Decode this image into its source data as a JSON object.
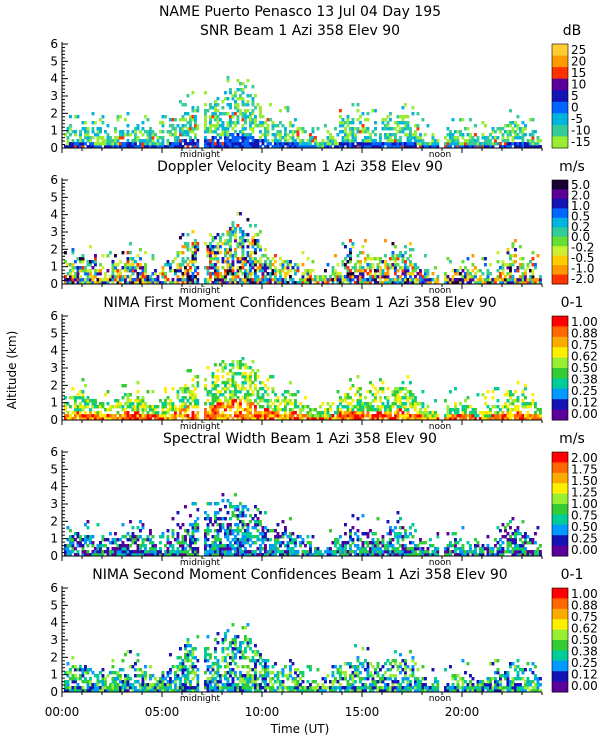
{
  "figure": {
    "title": "NAME Puerto Penasco  13 Jul 04 Day 195",
    "ylabel": "Altitude (km)",
    "xlabel": "Time (UT)",
    "xticks": [
      "00:00",
      "05:00",
      "10:00",
      "15:00",
      "20:00"
    ],
    "xtick_values": [
      0,
      5,
      10,
      15,
      20
    ],
    "xlim": [
      0,
      24
    ],
    "markers": [
      {
        "label": "midnight",
        "time": 6.9
      },
      {
        "label": "noon",
        "time": 18.9
      }
    ]
  },
  "chart_data": [
    {
      "type": "heatmap",
      "title": "SNR Beam 1 Azi 358 Elev 90",
      "unit": "dB",
      "ylim": [
        0,
        6
      ],
      "yticks": [
        "0",
        "1",
        "2",
        "3",
        "4",
        "5",
        "6"
      ],
      "colorbar_labels": [
        "25",
        "20",
        "15",
        "10",
        "5",
        "0",
        "-5",
        "-10",
        "-15"
      ],
      "colorbar_colors": [
        "#ffcc33",
        "#ff9900",
        "#ff3300",
        "#5a0099",
        "#1414b4",
        "#0066ff",
        "#00b4e0",
        "#33cc99",
        "#99ee33"
      ]
    },
    {
      "type": "heatmap",
      "title": "Doppler Velocity Beam 1 Azi 358 Elev 90",
      "unit": "m/s",
      "ylim": [
        0,
        6
      ],
      "yticks": [
        "0",
        "1",
        "2",
        "3",
        "4",
        "5",
        "6"
      ],
      "colorbar_labels": [
        "5.0",
        "2.0",
        "1.0",
        "0.5",
        "0.2",
        "0.0",
        "-0.2",
        "-0.5",
        "-1.0",
        "-2.0"
      ],
      "colorbar_colors": [
        "#1a0033",
        "#5a0099",
        "#1414b4",
        "#0066ff",
        "#00b4e0",
        "#33cc99",
        "#66dd33",
        "#ccee33",
        "#ffcc00",
        "#ff9900",
        "#ff3300"
      ]
    },
    {
      "type": "heatmap",
      "title": "NIMA First Moment Confidences Beam 1 Azi 358 Elev 90",
      "unit": "0-1",
      "ylim": [
        0,
        6
      ],
      "yticks": [
        "0",
        "1",
        "2",
        "3",
        "4",
        "5",
        "6"
      ],
      "colorbar_labels": [
        "1.00",
        "0.88",
        "0.75",
        "0.62",
        "0.50",
        "0.38",
        "0.25",
        "0.12",
        "0.00"
      ],
      "colorbar_colors": [
        "#ff0000",
        "#ff6600",
        "#ffaa00",
        "#ffee00",
        "#99ee33",
        "#33cc33",
        "#00cc99",
        "#0099ff",
        "#1414b4",
        "#5a0099"
      ]
    },
    {
      "type": "heatmap",
      "title": "Spectral Width Beam 1 Azi 358 Elev 90",
      "unit": "m/s",
      "ylim": [
        0,
        6
      ],
      "yticks": [
        "0",
        "1",
        "2",
        "3",
        "4",
        "5",
        "6"
      ],
      "colorbar_labels": [
        "2.00",
        "1.75",
        "1.50",
        "1.25",
        "1.00",
        "0.75",
        "0.50",
        "0.25",
        "0.00"
      ],
      "colorbar_colors": [
        "#ff0000",
        "#ff6600",
        "#ffaa00",
        "#ffee00",
        "#99ee33",
        "#33cc33",
        "#00cc99",
        "#0099ff",
        "#1414b4",
        "#5a0099"
      ]
    },
    {
      "type": "heatmap",
      "title": "NIMA Second Moment Confidences Beam 1 Azi 358 Elev 90",
      "unit": "0-1",
      "ylim": [
        0,
        6
      ],
      "yticks": [
        "0",
        "1",
        "2",
        "3",
        "4",
        "5",
        "6"
      ],
      "colorbar_labels": [
        "1.00",
        "0.88",
        "0.75",
        "0.62",
        "0.50",
        "0.38",
        "0.25",
        "0.12",
        "0.00"
      ],
      "colorbar_colors": [
        "#ff0000",
        "#ff6600",
        "#ffaa00",
        "#ffee00",
        "#99ee33",
        "#33cc33",
        "#00cc99",
        "#0099ff",
        "#1414b4",
        "#5a0099"
      ]
    }
  ]
}
